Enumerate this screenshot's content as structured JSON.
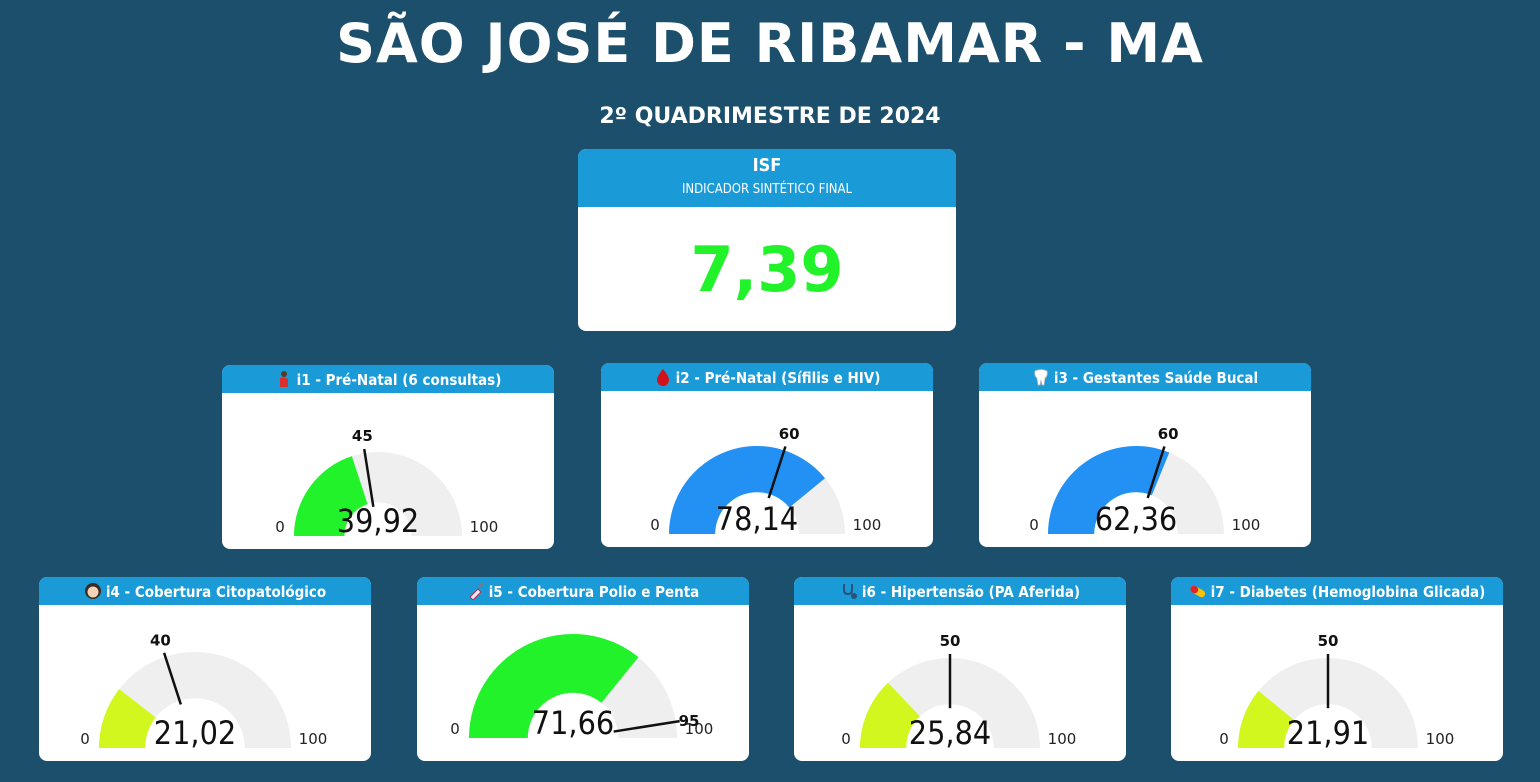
{
  "title": "SÃO JOSÉ DE RIBAMAR - MA",
  "subtitle": "2º QUADRIMESTRE DE 2024",
  "isf": {
    "label": "ISF",
    "sublabel": "INDICADOR SINTÉTICO FINAL",
    "value": "7,39",
    "color": "#22f22a"
  },
  "colors": {
    "background": "#1b4f6b",
    "header": "#1a9bd8",
    "track": "#efefef",
    "green": "#22f22a",
    "blue": "#2391f4",
    "yellow_green": "#d2f71f"
  },
  "chart_data": [
    {
      "type": "gauge",
      "id": "i1",
      "title": "i1 - Pré-Natal (6 consultas)",
      "icon": "pregnant-woman-icon",
      "value": 39.92,
      "value_label": "39,92",
      "target": 45,
      "min": 0,
      "max": 100,
      "min_label": "0",
      "max_label": "100",
      "target_label": "45",
      "color": "#22f22a"
    },
    {
      "type": "gauge",
      "id": "i2",
      "title": "i2 - Pré-Natal (Sífilis e HIV)",
      "icon": "blood-drop-icon",
      "value": 78.14,
      "value_label": "78,14",
      "target": 60,
      "min": 0,
      "max": 100,
      "min_label": "0",
      "max_label": "100",
      "target_label": "60",
      "color": "#2391f4"
    },
    {
      "type": "gauge",
      "id": "i3",
      "title": "i3 - Gestantes Saúde Bucal",
      "icon": "tooth-icon",
      "value": 62.36,
      "value_label": "62,36",
      "target": 60,
      "min": 0,
      "max": 100,
      "min_label": "0",
      "max_label": "100",
      "target_label": "60",
      "color": "#2391f4"
    },
    {
      "type": "gauge",
      "id": "i4",
      "title": "i4 - Cobertura Citopatológico",
      "icon": "woman-icon",
      "value": 21.02,
      "value_label": "21,02",
      "target": 40,
      "min": 0,
      "max": 100,
      "min_label": "0",
      "max_label": "100",
      "target_label": "40",
      "color": "#d2f71f"
    },
    {
      "type": "gauge",
      "id": "i5",
      "title": "i5 - Cobertura Polio e Penta",
      "icon": "syringe-icon",
      "value": 71.66,
      "value_label": "71,66",
      "target": 95,
      "min": 0,
      "max": 100,
      "min_label": "0",
      "max_label": "100",
      "target_label": "95",
      "color": "#22f22a"
    },
    {
      "type": "gauge",
      "id": "i6",
      "title": "i6 - Hipertensão (PA Aferida)",
      "icon": "stethoscope-icon",
      "value": 25.84,
      "value_label": "25,84",
      "target": 50,
      "min": 0,
      "max": 100,
      "min_label": "0",
      "max_label": "100",
      "target_label": "50",
      "color": "#d2f71f"
    },
    {
      "type": "gauge",
      "id": "i7",
      "title": "i7 - Diabetes (Hemoglobina Glicada)",
      "icon": "pill-icon",
      "value": 21.91,
      "value_label": "21,91",
      "target": 50,
      "min": 0,
      "max": 100,
      "min_label": "0",
      "max_label": "100",
      "target_label": "50",
      "color": "#d2f71f"
    }
  ]
}
